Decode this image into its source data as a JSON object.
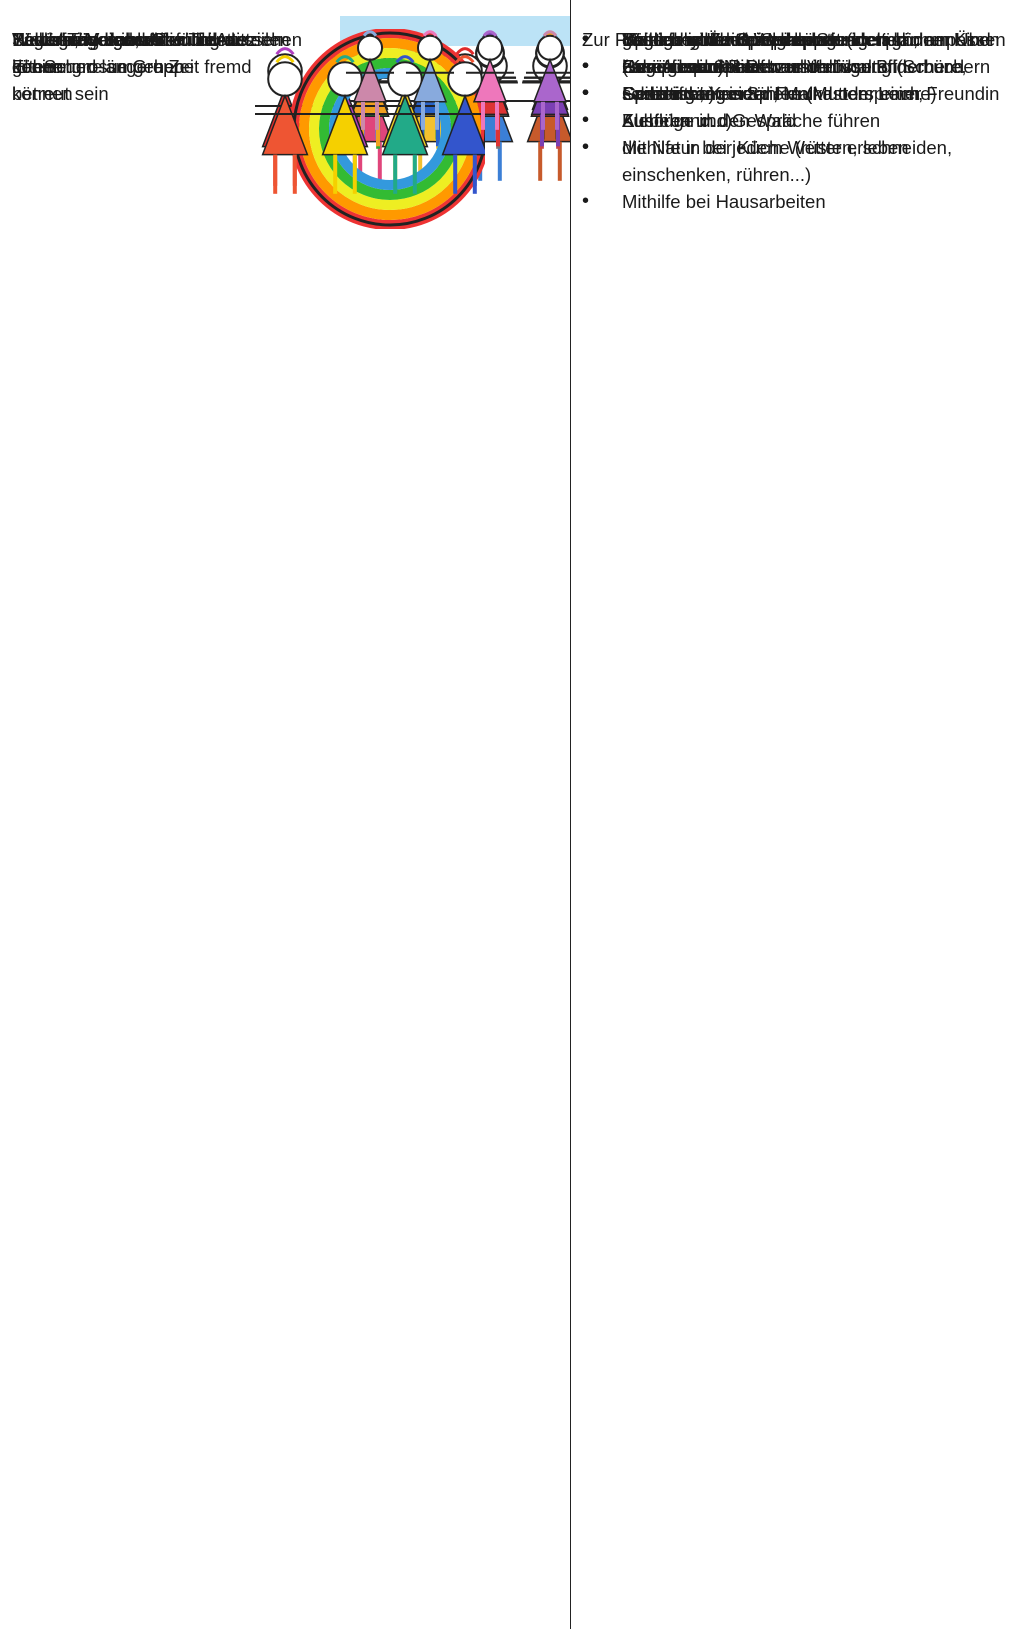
{
  "rows": [
    {
      "challenge": [
        "Tägliche Verabschiedung der",
        "Eltern und längere Zeit fremd",
        "betreut sein"
      ],
      "support": [
        "Besuch einer Spielgruppe",
        "Essen beim Nachbarskind",
        "Spielen bei einem Freund oder einer Freundin"
      ]
    },
    {
      "challenge": [
        "Neuer Tagesablauf"
      ],
      "support": [
        "Schlafrhythmus an den Stundenplan anpassen",
        "Genügend Schlaf"
      ]
    },
    {
      "challenge": [
        "Bewegung drinnen und draussen"
      ],
      "support": [
        "Spielen auf dem Spielplatz (klettern, balancieren)",
        "Spaziergänge",
        "Ausflüge in den Wald",
        "die Natur bei jedem Wetter erleben"
      ]
    },
    {
      "challenge": [
        "Selbstständig auf die Toilette",
        "gehen"
      ],
      "support": [
        "Tägliches Üben"
      ]
    },
    {
      "challenge": [
        "Selbstständiges An- und Ausziehen"
      ],
      "support": [
        "genügend Zeit einplanen beim täglichen Üben (Knöpfe und Reissverschlüsse öffnen und schliessen)"
      ]
    },
    {
      "challenge": [
        "Basteln, Malen, mit",
        "der Schere umgehen",
        "können"
      ],
      "support": [
        "Materialien und Werkzeuge stehen dem Kind zum Ausprobieren zur Verfügung (Schere, Farbstifte, Kreiden, Malkasten, Leim, Klebeband...)",
        "Mithilfe in der Küche (rüsten, schneiden, einschenken, rühren...)",
        "Mithilfe bei Hausarbeiten"
      ]
    },
    {
      "challenge": [
        "Wechsel von der Familie",
        "in eine grosse Gruppe"
      ],
      "support": [
        "Warten und zuhören können",
        "Regeln akzeptieren und einhalten",
        "Gemeinsames Spielen"
      ]
    },
    {
      "challenge": [
        "Bedürfnisse und Gefühle mitteilen",
        "können"
      ],
      "support_intro": "Zur Förderung der Sprache beitragen können:",
      "support": [
        "Gemeinsames Betrachten von Bilderbüchern",
        "Geschichten erzählen (Muttersprache)",
        "Zuhören und Gespräche führen"
      ]
    }
  ]
}
